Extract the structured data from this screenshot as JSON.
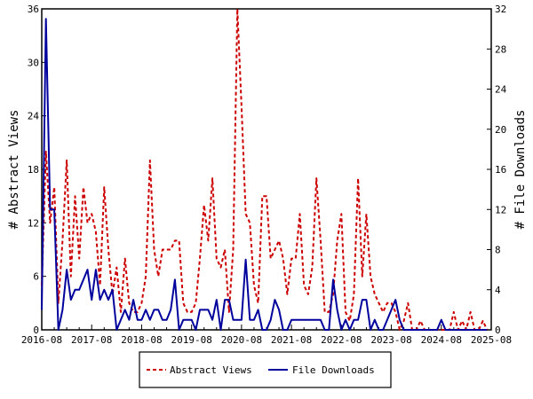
{
  "chart_data": {
    "type": "line",
    "title": "",
    "ylabel_left": "# Abstract Views",
    "ylabel_right": "# File Downloads",
    "ylim_left": [
      0,
      36
    ],
    "ylim_right": [
      0,
      32
    ],
    "yticks_left": [
      0,
      6,
      12,
      18,
      24,
      30,
      36
    ],
    "yticks_right": [
      0,
      4,
      8,
      12,
      16,
      20,
      24,
      28,
      32
    ],
    "xlim": [
      "2016-08",
      "2025-08"
    ],
    "xtick_labels": [
      "2016-08",
      "2017-08",
      "2018-08",
      "2019-08",
      "2020-08",
      "2021-08",
      "2022-08",
      "2023-08",
      "2024-08",
      "2025-08"
    ],
    "grid": false,
    "legend_position": "bottom-center",
    "series": [
      {
        "name": "Abstract Views",
        "axis": "left",
        "color": "#cc0000",
        "dash": "dashed",
        "values": [
          [
            "2016-08",
            5
          ],
          [
            "2016-09",
            20
          ],
          [
            "2016-10",
            12
          ],
          [
            "2016-11",
            16
          ],
          [
            "2016-12",
            3
          ],
          [
            "2017-01",
            10
          ],
          [
            "2017-02",
            19
          ],
          [
            "2017-03",
            6
          ],
          [
            "2017-04",
            15
          ],
          [
            "2017-05",
            8
          ],
          [
            "2017-06",
            16
          ],
          [
            "2017-07",
            12
          ],
          [
            "2017-08",
            13
          ],
          [
            "2017-09",
            11
          ],
          [
            "2017-10",
            5
          ],
          [
            "2017-11",
            16
          ],
          [
            "2017-12",
            9
          ],
          [
            "2018-01",
            4
          ],
          [
            "2018-02",
            7
          ],
          [
            "2018-03",
            2
          ],
          [
            "2018-04",
            8
          ],
          [
            "2018-05",
            3
          ],
          [
            "2018-06",
            2
          ],
          [
            "2018-07",
            2
          ],
          [
            "2018-08",
            3
          ],
          [
            "2018-09",
            6
          ],
          [
            "2018-10",
            19
          ],
          [
            "2018-11",
            9
          ],
          [
            "2018-12",
            6
          ],
          [
            "2019-01",
            9
          ],
          [
            "2019-02",
            9
          ],
          [
            "2019-03",
            9
          ],
          [
            "2019-04",
            10
          ],
          [
            "2019-05",
            10
          ],
          [
            "2019-06",
            3
          ],
          [
            "2019-07",
            2
          ],
          [
            "2019-08",
            2
          ],
          [
            "2019-09",
            3
          ],
          [
            "2019-10",
            8
          ],
          [
            "2019-11",
            14
          ],
          [
            "2019-12",
            10
          ],
          [
            "2020-01",
            17
          ],
          [
            "2020-02",
            8
          ],
          [
            "2020-03",
            7
          ],
          [
            "2020-04",
            9
          ],
          [
            "2020-05",
            2
          ],
          [
            "2020-06",
            9
          ],
          [
            "2020-07",
            36
          ],
          [
            "2020-08",
            25
          ],
          [
            "2020-09",
            13
          ],
          [
            "2020-10",
            12
          ],
          [
            "2020-11",
            5
          ],
          [
            "2020-12",
            3
          ],
          [
            "2021-01",
            15
          ],
          [
            "2021-02",
            15
          ],
          [
            "2021-03",
            8
          ],
          [
            "2021-04",
            9
          ],
          [
            "2021-05",
            10
          ],
          [
            "2021-06",
            8
          ],
          [
            "2021-07",
            4
          ],
          [
            "2021-08",
            8
          ],
          [
            "2021-09",
            8
          ],
          [
            "2021-10",
            13
          ],
          [
            "2021-11",
            5
          ],
          [
            "2021-12",
            4
          ],
          [
            "2022-01",
            7
          ],
          [
            "2022-02",
            17
          ],
          [
            "2022-03",
            10
          ],
          [
            "2022-04",
            2
          ],
          [
            "2022-05",
            2
          ],
          [
            "2022-06",
            4
          ],
          [
            "2022-07",
            10
          ],
          [
            "2022-08",
            13
          ],
          [
            "2022-09",
            2
          ],
          [
            "2022-10",
            1
          ],
          [
            "2022-11",
            4
          ],
          [
            "2022-12",
            17
          ],
          [
            "2023-01",
            6
          ],
          [
            "2023-02",
            13
          ],
          [
            "2023-03",
            6
          ],
          [
            "2023-04",
            4
          ],
          [
            "2023-05",
            3
          ],
          [
            "2023-06",
            2
          ],
          [
            "2023-07",
            3
          ],
          [
            "2023-08",
            3
          ],
          [
            "2023-09",
            2
          ],
          [
            "2023-10",
            0
          ],
          [
            "2023-11",
            1
          ],
          [
            "2023-12",
            3
          ],
          [
            "2024-01",
            0
          ],
          [
            "2024-02",
            0
          ],
          [
            "2024-03",
            1
          ],
          [
            "2024-04",
            0
          ],
          [
            "2024-05",
            0
          ],
          [
            "2024-06",
            0
          ],
          [
            "2024-07",
            0
          ],
          [
            "2024-08",
            0
          ],
          [
            "2024-09",
            0
          ],
          [
            "2024-10",
            0
          ],
          [
            "2024-11",
            2
          ],
          [
            "2024-12",
            0
          ],
          [
            "2025-01",
            1
          ],
          [
            "2025-02",
            0
          ],
          [
            "2025-03",
            2
          ],
          [
            "2025-04",
            0
          ],
          [
            "2025-05",
            0
          ],
          [
            "2025-06",
            1
          ],
          [
            "2025-07",
            0
          ]
        ]
      },
      {
        "name": "File Downloads",
        "axis": "right",
        "color": "#00009c",
        "dash": "solid",
        "values": [
          [
            "2016-08",
            2
          ],
          [
            "2016-09",
            31
          ],
          [
            "2016-10",
            12
          ],
          [
            "2016-11",
            12
          ],
          [
            "2016-12",
            0
          ],
          [
            "2017-01",
            2
          ],
          [
            "2017-02",
            6
          ],
          [
            "2017-03",
            3
          ],
          [
            "2017-04",
            4
          ],
          [
            "2017-05",
            4
          ],
          [
            "2017-06",
            5
          ],
          [
            "2017-07",
            6
          ],
          [
            "2017-08",
            3
          ],
          [
            "2017-09",
            6
          ],
          [
            "2017-10",
            3
          ],
          [
            "2017-11",
            4
          ],
          [
            "2017-12",
            3
          ],
          [
            "2018-01",
            4
          ],
          [
            "2018-02",
            0
          ],
          [
            "2018-03",
            1
          ],
          [
            "2018-04",
            2
          ],
          [
            "2018-05",
            1
          ],
          [
            "2018-06",
            3
          ],
          [
            "2018-07",
            1
          ],
          [
            "2018-08",
            1
          ],
          [
            "2018-09",
            2
          ],
          [
            "2018-10",
            1
          ],
          [
            "2018-11",
            2
          ],
          [
            "2018-12",
            2
          ],
          [
            "2019-01",
            1
          ],
          [
            "2019-02",
            1
          ],
          [
            "2019-03",
            2
          ],
          [
            "2019-04",
            5
          ],
          [
            "2019-05",
            0
          ],
          [
            "2019-06",
            1
          ],
          [
            "2019-07",
            1
          ],
          [
            "2019-08",
            1
          ],
          [
            "2019-09",
            0
          ],
          [
            "2019-10",
            2
          ],
          [
            "2019-11",
            2
          ],
          [
            "2019-12",
            2
          ],
          [
            "2020-01",
            1
          ],
          [
            "2020-02",
            3
          ],
          [
            "2020-03",
            0
          ],
          [
            "2020-04",
            3
          ],
          [
            "2020-05",
            3
          ],
          [
            "2020-06",
            1
          ],
          [
            "2020-07",
            1
          ],
          [
            "2020-08",
            1
          ],
          [
            "2020-09",
            7
          ],
          [
            "2020-10",
            1
          ],
          [
            "2020-11",
            1
          ],
          [
            "2020-12",
            2
          ],
          [
            "2021-01",
            0
          ],
          [
            "2021-02",
            0
          ],
          [
            "2021-03",
            1
          ],
          [
            "2021-04",
            3
          ],
          [
            "2021-05",
            2
          ],
          [
            "2021-06",
            0
          ],
          [
            "2021-07",
            0
          ],
          [
            "2021-08",
            1
          ],
          [
            "2021-09",
            1
          ],
          [
            "2021-10",
            1
          ],
          [
            "2021-11",
            1
          ],
          [
            "2021-12",
            1
          ],
          [
            "2022-01",
            1
          ],
          [
            "2022-02",
            1
          ],
          [
            "2022-03",
            1
          ],
          [
            "2022-04",
            0
          ],
          [
            "2022-05",
            0
          ],
          [
            "2022-06",
            5
          ],
          [
            "2022-07",
            2
          ],
          [
            "2022-08",
            0
          ],
          [
            "2022-09",
            1
          ],
          [
            "2022-10",
            0
          ],
          [
            "2022-11",
            1
          ],
          [
            "2022-12",
            1
          ],
          [
            "2023-01",
            3
          ],
          [
            "2023-02",
            3
          ],
          [
            "2023-03",
            0
          ],
          [
            "2023-04",
            1
          ],
          [
            "2023-05",
            0
          ],
          [
            "2023-06",
            0
          ],
          [
            "2023-07",
            1
          ],
          [
            "2023-08",
            2
          ],
          [
            "2023-09",
            3
          ],
          [
            "2023-10",
            1
          ],
          [
            "2023-11",
            0
          ],
          [
            "2023-12",
            0
          ],
          [
            "2024-01",
            0
          ],
          [
            "2024-02",
            0
          ],
          [
            "2024-03",
            0
          ],
          [
            "2024-04",
            0
          ],
          [
            "2024-05",
            0
          ],
          [
            "2024-06",
            0
          ],
          [
            "2024-07",
            0
          ],
          [
            "2024-08",
            1
          ],
          [
            "2024-09",
            0
          ],
          [
            "2024-10",
            0
          ],
          [
            "2024-11",
            0
          ],
          [
            "2024-12",
            0
          ],
          [
            "2025-01",
            0
          ],
          [
            "2025-02",
            0
          ],
          [
            "2025-03",
            0
          ],
          [
            "2025-04",
            0
          ],
          [
            "2025-05",
            0
          ],
          [
            "2025-06",
            0
          ],
          [
            "2025-07",
            0
          ]
        ]
      }
    ]
  }
}
